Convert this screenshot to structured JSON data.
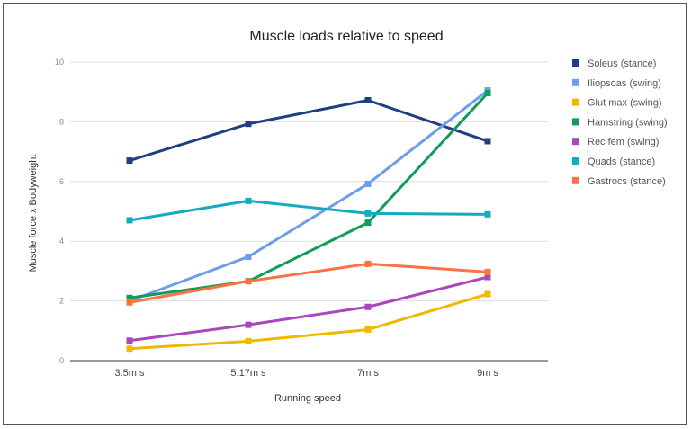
{
  "chart_data": {
    "type": "line",
    "title": "Muscle loads relative to speed",
    "xlabel": "Running speed",
    "ylabel": "Muscle force x Bodyweight",
    "categories": [
      "3.5m s",
      "5.17m s",
      "7m s",
      "9m s"
    ],
    "ylim": [
      0,
      10
    ],
    "yticks": [
      "0",
      "2",
      "4",
      "6",
      "8",
      "10"
    ],
    "grid": true,
    "legend_position": "right",
    "series": [
      {
        "name": "Soleus (stance)",
        "color": "#1f3f7f",
        "values": [
          6.7,
          7.93,
          8.72,
          7.35
        ]
      },
      {
        "name": "Iliopsoas (swing)",
        "color": "#6d9eeb",
        "values": [
          2.0,
          3.48,
          5.92,
          9.05
        ]
      },
      {
        "name": "Glut max (swing)",
        "color": "#f1b800",
        "values": [
          0.4,
          0.65,
          1.04,
          2.23
        ]
      },
      {
        "name": "Hamstring (swing)",
        "color": "#0f9d58",
        "values": [
          2.1,
          2.66,
          4.62,
          8.96
        ]
      },
      {
        "name": "Rec fem (swing)",
        "color": "#ab47bc",
        "values": [
          0.67,
          1.2,
          1.8,
          2.8
        ]
      },
      {
        "name": "Quads (stance)",
        "color": "#12abc1",
        "values": [
          4.7,
          5.35,
          4.93,
          4.9
        ]
      },
      {
        "name": "Gastrocs (stance)",
        "color": "#ff7043",
        "values": [
          1.95,
          2.66,
          3.24,
          2.97
        ]
      }
    ]
  }
}
